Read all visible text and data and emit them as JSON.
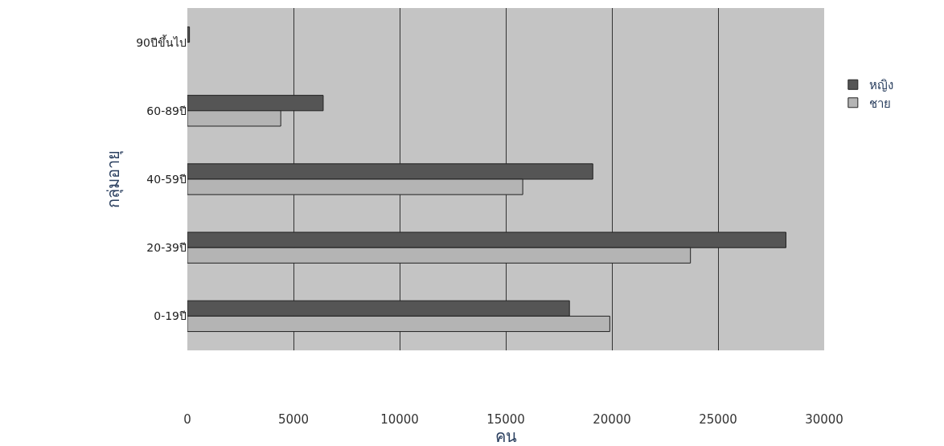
{
  "chart_data": {
    "type": "bar",
    "orientation": "horizontal",
    "xlabel": "คน",
    "ylabel": "กลุ่มอายุ",
    "categories": [
      "90ปีขึ้นไป",
      "60-89ปี",
      "40-59ปี",
      "20-39ปี",
      "0-19ปี"
    ],
    "series": [
      {
        "name": "หญิง",
        "color": "#555555",
        "values": [
          100,
          6400,
          19100,
          28200,
          18000
        ]
      },
      {
        "name": "ชาย",
        "color": "#b4b4b4",
        "values": [
          null,
          4400,
          15800,
          23700,
          19900
        ]
      }
    ],
    "xlim": [
      0,
      30000
    ],
    "xticks": [
      0,
      5000,
      10000,
      15000,
      20000,
      25000,
      30000
    ],
    "grid": "x",
    "legend": "right"
  }
}
